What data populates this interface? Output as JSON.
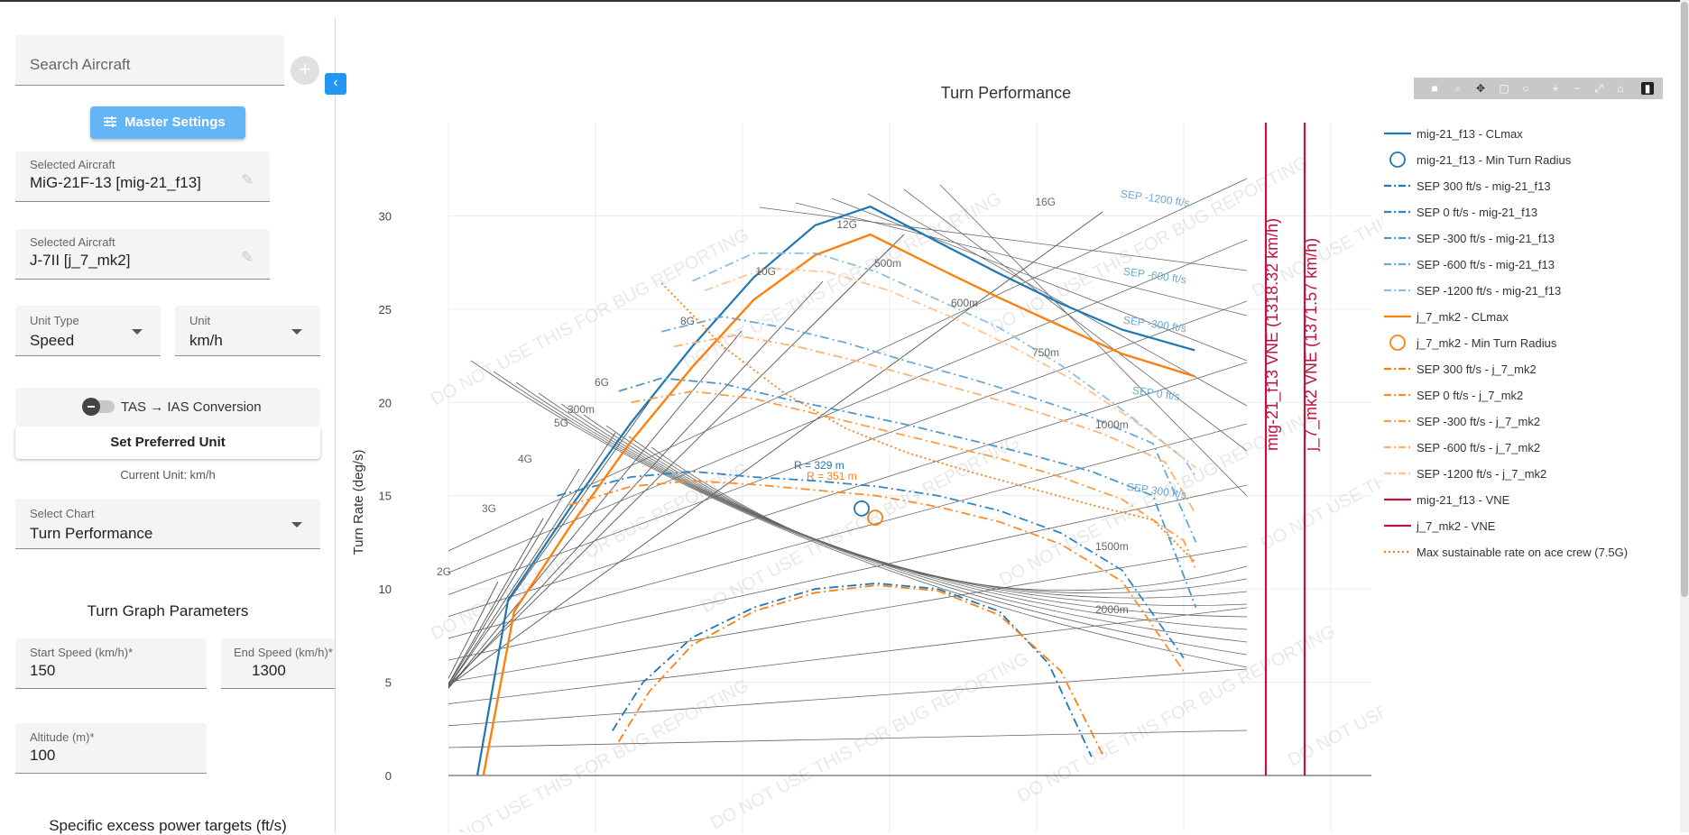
{
  "sidebar": {
    "search_placeholder": "Search Aircraft",
    "add_label": "+",
    "collapse_label": "‹",
    "master_settings_label": "Master Settings",
    "aircraft_1": {
      "label": "Selected Aircraft",
      "value": "MiG-21F-13 [mig-21_f13]"
    },
    "aircraft_2": {
      "label": "Selected Aircraft",
      "value": "J-7II [j_7_mk2]"
    },
    "unit_type": {
      "label": "Unit Type",
      "value": "Speed"
    },
    "unit": {
      "label": "Unit",
      "value": "km/h"
    },
    "tas_ias_label": "TAS → IAS Conversion",
    "tas_ias_enabled": false,
    "preferred_unit_label": "Set Preferred Unit",
    "current_unit": "Current Unit: km/h",
    "chart_select": {
      "label": "Select Chart",
      "value": "Turn Performance"
    },
    "turn_params_title": "Turn Graph Parameters",
    "start_speed": {
      "label": "Start Speed (km/h)*",
      "value": "150"
    },
    "end_speed": {
      "label": "End Speed (km/h)*",
      "value": "1300"
    },
    "altitude": {
      "label": "Altitude (m)*",
      "value": "100"
    },
    "sep_title": "Specific excess power targets (ft/s)"
  },
  "chart_data": {
    "type": "line",
    "title": "Turn Performance",
    "ylabel": "Turn Rate (deg/s)",
    "xlabel": "",
    "ylim": [
      0,
      34
    ],
    "yticks": [
      "0",
      "5",
      "10",
      "15",
      "20",
      "25",
      "30"
    ],
    "watermark": "DO NOT USE THIS FOR BUG REPORTING",
    "g_labels": [
      "2G",
      "3G",
      "4G",
      "5G",
      "6G",
      "8G",
      "10G",
      "12G",
      "16G"
    ],
    "radius_labels": [
      "300m",
      "500m",
      "600m",
      "750m",
      "1000m",
      "1500m",
      "2000m"
    ],
    "min_radius_labels": [
      "R = 329 m",
      "R = 351 m"
    ],
    "sep_line_labels": [
      "SEP -1200 ft/s",
      "SEP -600 ft/s",
      "SEP -300 ft/s",
      "SEP 0 ft/s",
      "SEP 300 ft/s"
    ],
    "vne_labels": [
      "mig-21_f13 VNE (1318.32 km/h)",
      "j_7_mk2 VNE (1371.57 km/h)"
    ],
    "colors": {
      "mig": "#1f77b4",
      "j7": "#ff7f0e",
      "vne": "#c0143c",
      "grid_line": "#666666"
    },
    "series": [
      {
        "name": "mig-21_f13 - CLmax",
        "x": [
          150,
          200,
          300,
          400,
          500,
          600,
          700,
          790,
          900,
          1000,
          1100,
          1200,
          1318
        ],
        "y": [
          0,
          9.4,
          14.3,
          18.9,
          23.0,
          26.7,
          29.5,
          30.5,
          28.6,
          26.9,
          25.3,
          23.9,
          22.8
        ]
      },
      {
        "name": "j_7_mk2 - CLmax",
        "x": [
          160,
          210,
          300,
          400,
          500,
          600,
          700,
          790,
          900,
          1000,
          1100,
          1200,
          1318
        ],
        "y": [
          0,
          8.8,
          13.3,
          17.9,
          21.9,
          25.5,
          27.9,
          29.0,
          27.2,
          25.6,
          24.1,
          22.6,
          21.4
        ]
      },
      {
        "name": "SEP 300 ft/s - mig-21_f13",
        "x": [
          370,
          420,
          500,
          600,
          700,
          800,
          900,
          1000,
          1080,
          1150
        ],
        "y": [
          2.4,
          5.0,
          7.4,
          9.0,
          10.0,
          10.3,
          10.0,
          8.8,
          6.0,
          1.0
        ]
      },
      {
        "name": "SEP 0 ft/s - mig-21_f13",
        "x": [
          280,
          400,
          500,
          600,
          700,
          800,
          900,
          1000,
          1100,
          1200,
          1300
        ],
        "y": [
          15.0,
          16.0,
          16.3,
          16.0,
          15.8,
          15.5,
          15.0,
          14.2,
          13.0,
          11.0,
          6.3
        ]
      },
      {
        "name": "SEP -300 ft/s - mig-21_f13",
        "x": [
          380,
          450,
          550,
          650,
          750,
          850,
          950,
          1050,
          1150,
          1250,
          1320
        ],
        "y": [
          20.6,
          21.3,
          21.0,
          20.2,
          19.5,
          18.8,
          18.0,
          17.2,
          16.3,
          15.0,
          9.0
        ]
      },
      {
        "name": "SEP -600 ft/s - mig-21_f13",
        "x": [
          450,
          550,
          650,
          750,
          850,
          950,
          1050,
          1150,
          1250,
          1320
        ],
        "y": [
          23.8,
          24.6,
          24.0,
          23.2,
          22.2,
          21.3,
          20.3,
          19.2,
          17.8,
          12.5
        ]
      },
      {
        "name": "SEP -1200 ft/s - mig-21_f13",
        "x": [
          500,
          600,
          700,
          800,
          900,
          1000,
          1100,
          1200,
          1300,
          1320
        ],
        "y": [
          26.5,
          28.0,
          28.0,
          27.0,
          25.5,
          24.0,
          22.0,
          19.6,
          17.0,
          16.0
        ]
      },
      {
        "name": "j_7_mk2 - CLmax",
        "x": [
          160,
          210,
          300,
          400,
          500,
          600,
          700,
          790,
          900,
          1000,
          1100,
          1200,
          1318
        ],
        "y": [
          0,
          8.8,
          13.3,
          17.9,
          21.9,
          25.5,
          27.9,
          29.0,
          27.2,
          25.6,
          24.1,
          22.6,
          21.4
        ]
      },
      {
        "name": "SEP 300 ft/s - j_7_mk2",
        "x": [
          380,
          430,
          500,
          600,
          700,
          800,
          900,
          1000,
          1100,
          1170
        ],
        "y": [
          1.8,
          4.5,
          7.0,
          8.8,
          9.8,
          10.2,
          9.9,
          8.6,
          5.6,
          1.0
        ]
      },
      {
        "name": "SEP 0 ft/s - j_7_mk2",
        "x": [
          300,
          400,
          500,
          600,
          700,
          800,
          900,
          1000,
          1100,
          1200,
          1300
        ],
        "y": [
          14.5,
          15.5,
          15.8,
          15.6,
          15.3,
          15.0,
          14.4,
          13.6,
          12.4,
          10.4,
          5.6
        ]
      },
      {
        "name": "SEP -300 ft/s - j_7_mk2",
        "x": [
          400,
          500,
          600,
          700,
          800,
          900,
          1000,
          1100,
          1200,
          1300,
          1320
        ],
        "y": [
          20.0,
          20.6,
          20.2,
          19.4,
          18.6,
          17.8,
          17.0,
          16.0,
          14.8,
          12.6,
          11.0
        ]
      },
      {
        "name": "SEP -600 ft/s - j_7_mk2",
        "x": [
          470,
          570,
          670,
          770,
          870,
          970,
          1070,
          1170,
          1270,
          1320
        ],
        "y": [
          23.0,
          23.6,
          23.0,
          22.2,
          21.3,
          20.4,
          19.4,
          18.3,
          16.8,
          14.0
        ]
      },
      {
        "name": "SEP -1200 ft/s - j_7_mk2",
        "x": [
          520,
          620,
          720,
          820,
          920,
          1020,
          1120,
          1220,
          1320
        ],
        "y": [
          26.0,
          27.2,
          27.0,
          26.0,
          24.6,
          23.0,
          21.2,
          19.0,
          16.5
        ]
      },
      {
        "name": "Max sustainable rate on ace crew (7.5G)",
        "x": [
          450,
          550,
          650,
          750,
          850,
          950,
          1050,
          1150,
          1250,
          1320
        ],
        "y": [
          26.4,
          23.0,
          20.5,
          18.6,
          17.3,
          16.3,
          15.4,
          14.5,
          13.7,
          11.4
        ]
      }
    ],
    "legend": [
      {
        "label": "mig-21_f13 - CLmax",
        "color": "#1f77b4",
        "style": "solid"
      },
      {
        "label": "mig-21_f13 - Min Turn Radius",
        "color": "#1f77b4",
        "style": "circle"
      },
      {
        "label": "SEP 300 ft/s - mig-21_f13",
        "color": "#1f77b4",
        "style": "dashdot"
      },
      {
        "label": "SEP 0 ft/s - mig-21_f13",
        "color": "#2c86c4",
        "style": "dashdot"
      },
      {
        "label": "SEP -300 ft/s - mig-21_f13",
        "color": "#4a97cc",
        "style": "dashdot"
      },
      {
        "label": "SEP -600 ft/s - mig-21_f13",
        "color": "#6aa9d6",
        "style": "dashdot"
      },
      {
        "label": "SEP -1200 ft/s - mig-21_f13",
        "color": "#8fbfe0",
        "style": "dashdot"
      },
      {
        "label": "j_7_mk2 - CLmax",
        "color": "#ff7f0e",
        "style": "solid"
      },
      {
        "label": "j_7_mk2 - Min Turn Radius",
        "color": "#ff7f0e",
        "style": "circle"
      },
      {
        "label": "SEP 300 ft/s - j_7_mk2",
        "color": "#ff7f0e",
        "style": "dashdot"
      },
      {
        "label": "SEP 0 ft/s - j_7_mk2",
        "color": "#ff8c26",
        "style": "dashdot"
      },
      {
        "label": "SEP -300 ft/s - j_7_mk2",
        "color": "#ff9d47",
        "style": "dashdot"
      },
      {
        "label": "SEP -600 ft/s - j_7_mk2",
        "color": "#ffb170",
        "style": "dashdot"
      },
      {
        "label": "SEP -1200 ft/s - j_7_mk2",
        "color": "#ffc494",
        "style": "dashdot"
      },
      {
        "label": "mig-21_f13 - VNE",
        "color": "#c0143c",
        "style": "solid"
      },
      {
        "label": "j_7_mk2 - VNE",
        "color": "#c0143c",
        "style": "solid"
      },
      {
        "label": "Max sustainable rate on ace crew (7.5G)",
        "color": "#ff7f0e",
        "style": "dotted"
      }
    ]
  }
}
